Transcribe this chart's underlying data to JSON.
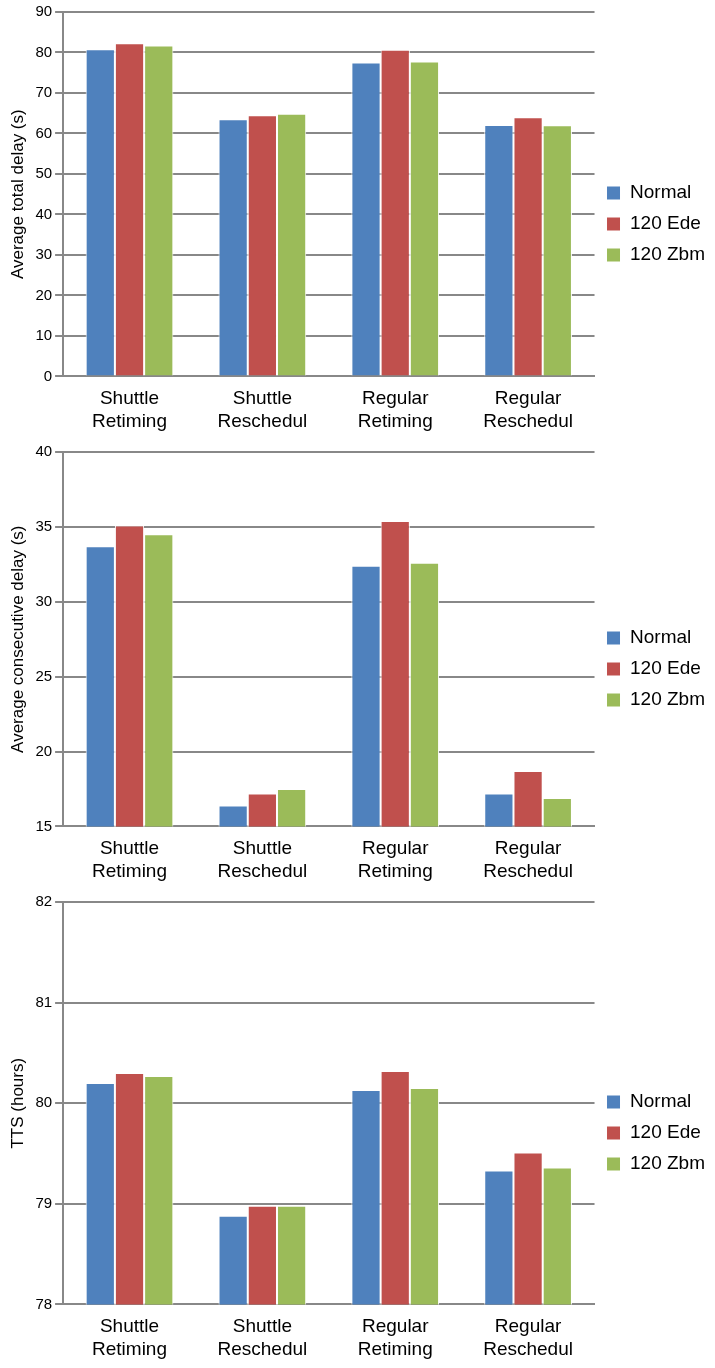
{
  "chart_data": [
    {
      "type": "bar",
      "ylabel": "Average total delay (s)",
      "categories": [
        "Shuttle\nRetiming",
        "Shuttle\nReschedul",
        "Regular\nRetiming",
        "Regular\nReschedul"
      ],
      "ylim": [
        0,
        90
      ],
      "yticks": [
        0,
        10,
        20,
        30,
        40,
        50,
        60,
        70,
        80,
        90
      ],
      "grid": "y",
      "legend": "right",
      "series": [
        {
          "name": "Normal",
          "color": "#4f81bd",
          "values": [
            80.8,
            63.5,
            77.5,
            62.1
          ]
        },
        {
          "name": "120 Ede",
          "color": "#c0504d",
          "values": [
            82.3,
            64.5,
            80.7,
            64.0
          ]
        },
        {
          "name": "120 Zbm",
          "color": "#9bbb59",
          "values": [
            81.7,
            64.9,
            77.8,
            62.0
          ]
        }
      ]
    },
    {
      "type": "bar",
      "ylabel": "Average consecutive delay (s)",
      "categories": [
        "Shuttle\nRetiming",
        "Shuttle\nReschedul",
        "Regular\nRetiming",
        "Regular\nReschedul"
      ],
      "ylim": [
        15,
        40
      ],
      "yticks": [
        15,
        20,
        25,
        30,
        35,
        40
      ],
      "grid": "y",
      "legend": "right",
      "series": [
        {
          "name": "Normal",
          "color": "#4f81bd",
          "values": [
            33.7,
            16.4,
            32.4,
            17.2
          ]
        },
        {
          "name": "120 Ede",
          "color": "#c0504d",
          "values": [
            35.1,
            17.2,
            35.4,
            18.7
          ]
        },
        {
          "name": "120 Zbm",
          "color": "#9bbb59",
          "values": [
            34.5,
            17.5,
            32.6,
            16.9
          ]
        }
      ]
    },
    {
      "type": "bar",
      "ylabel": "TTS (hours)",
      "categories": [
        "Shuttle\nRetiming",
        "Shuttle\nReschedul",
        "Regular\nRetiming",
        "Regular\nReschedul"
      ],
      "ylim": [
        78,
        82
      ],
      "yticks": [
        78,
        79,
        80,
        81,
        82
      ],
      "grid": "y",
      "legend": "right",
      "series": [
        {
          "name": "Normal",
          "color": "#4f81bd",
          "values": [
            80.2,
            78.88,
            80.13,
            79.33
          ]
        },
        {
          "name": "120 Ede",
          "color": "#c0504d",
          "values": [
            80.3,
            78.98,
            80.32,
            79.51
          ]
        },
        {
          "name": "120 Zbm",
          "color": "#9bbb59",
          "values": [
            80.27,
            78.98,
            80.15,
            79.36
          ]
        }
      ]
    }
  ]
}
